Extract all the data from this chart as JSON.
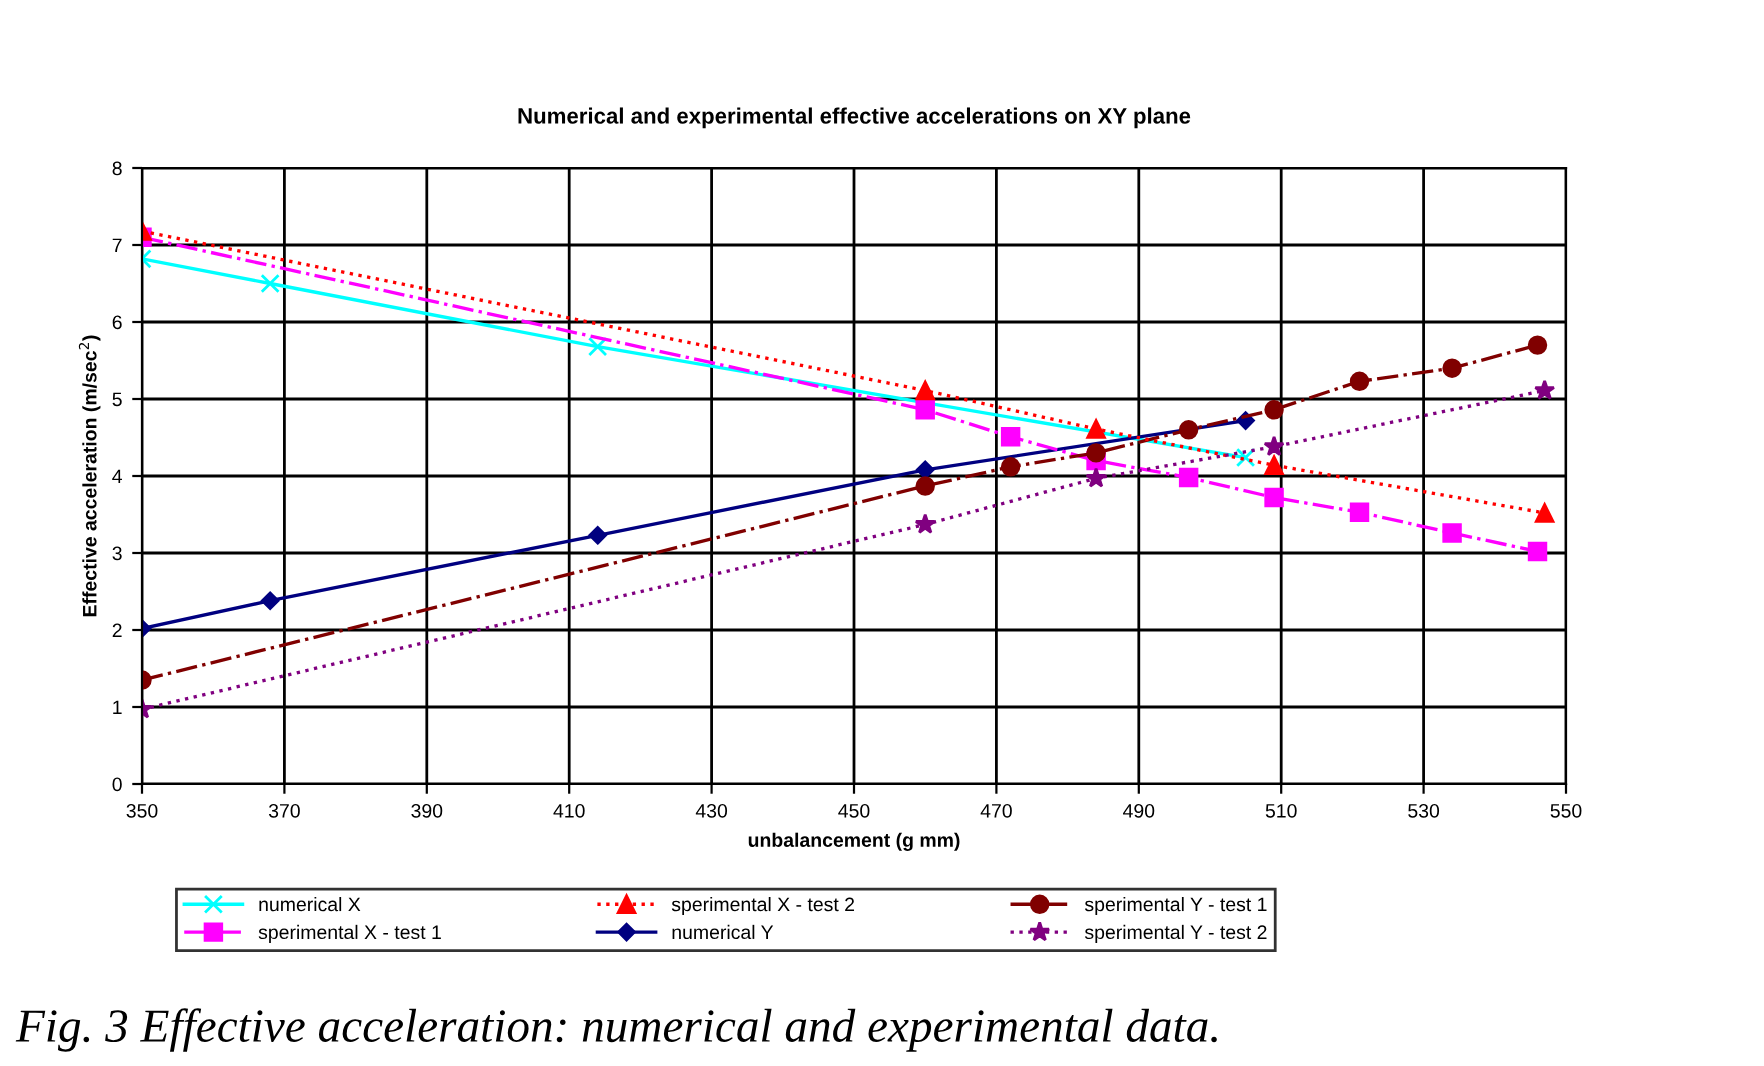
{
  "chart_data": {
    "type": "line",
    "title": "Numerical and experimental effective accelerations on XY plane",
    "xlabel": "unbalancement (g mm)",
    "ylabel": "Effective acceleration (m/sec$^{2}$)",
    "xlim": [
      350,
      550
    ],
    "xticks": [
      350,
      370,
      390,
      410,
      430,
      450,
      470,
      490,
      510,
      530,
      550
    ],
    "ylim": [
      0,
      8
    ],
    "yticks": [
      0,
      1,
      2,
      3,
      4,
      5,
      6,
      7,
      8
    ],
    "grid": true,
    "legend": "bottom",
    "annotations": [
      "Fig. 3 Effective acceleration: numerical and experimental data."
    ],
    "series": [
      {
        "name": "numerical X",
        "color": "#00ffff",
        "marker": "cross",
        "line_style": "solid",
        "x": [
          350,
          368,
          414,
          505
        ],
        "values": [
          6.82,
          6.5,
          5.68,
          4.24
        ]
      },
      {
        "name": "numerical Y",
        "color": "#000080",
        "marker": "diamond",
        "line_style": "solid",
        "x": [
          350,
          368,
          414,
          460,
          505
        ],
        "values": [
          2.02,
          2.38,
          3.23,
          4.08,
          4.72
        ]
      },
      {
        "name": "sperimental X - test 1",
        "color": "#ff00ff",
        "marker": "square",
        "line_style": "dashed",
        "x": [
          350,
          460,
          472,
          484,
          497,
          509,
          521,
          534,
          546
        ],
        "values": [
          7.1,
          4.86,
          4.51,
          4.2,
          3.98,
          3.72,
          3.53,
          3.26,
          3.02
        ]
      },
      {
        "name": "sperimental Y - test 1",
        "color": "#800000",
        "marker": "circle",
        "line_style": "dashed",
        "x": [
          350,
          460,
          472,
          484,
          497,
          509,
          521,
          534,
          546
        ],
        "values": [
          1.35,
          3.87,
          4.12,
          4.3,
          4.6,
          4.86,
          5.23,
          5.4,
          5.7
        ]
      },
      {
        "name": "sperimental X - test 2",
        "color": "#ff0000",
        "marker": "triangle",
        "line_style": "dotted",
        "x": [
          350,
          460,
          484,
          509,
          547
        ],
        "values": [
          7.18,
          5.11,
          4.61,
          4.14,
          3.52
        ]
      },
      {
        "name": "sperimental Y - test 2",
        "color": "#800080",
        "marker": "star",
        "line_style": "dotted",
        "x": [
          350,
          460,
          484,
          509,
          547
        ],
        "values": [
          0.97,
          3.37,
          3.97,
          4.38,
          5.11
        ]
      }
    ]
  }
}
